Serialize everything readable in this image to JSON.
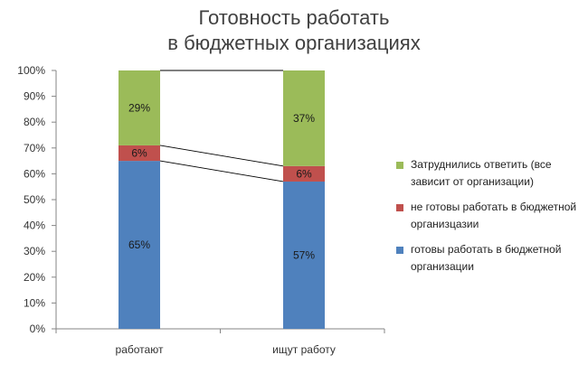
{
  "chart_data": {
    "type": "bar",
    "stacked": true,
    "title_lines": [
      "Готовность работать",
      "в бюджетных организациях"
    ],
    "categories": [
      "работают",
      "ищут работу"
    ],
    "series": [
      {
        "name": "готовы работать в бюджетной организации",
        "values": [
          65,
          57
        ],
        "labels": [
          "65%",
          "57%"
        ],
        "color": "#4F81BD"
      },
      {
        "name": "не готовы работать в бюджетной организцазии",
        "values": [
          6,
          6
        ],
        "labels": [
          "6%",
          "6%"
        ],
        "color": "#C0504D"
      },
      {
        "name": "Затруднились ответить (все зависит от организации)",
        "values": [
          29,
          37
        ],
        "labels": [
          "29%",
          "37%"
        ],
        "color": "#9BBB59"
      }
    ],
    "y_ticks": [
      "0%",
      "10%",
      "20%",
      "30%",
      "40%",
      "50%",
      "60%",
      "70%",
      "80%",
      "90%",
      "100%"
    ],
    "ylim": [
      0,
      100
    ],
    "series_lines": true,
    "grid": false,
    "legend_position": "right"
  }
}
